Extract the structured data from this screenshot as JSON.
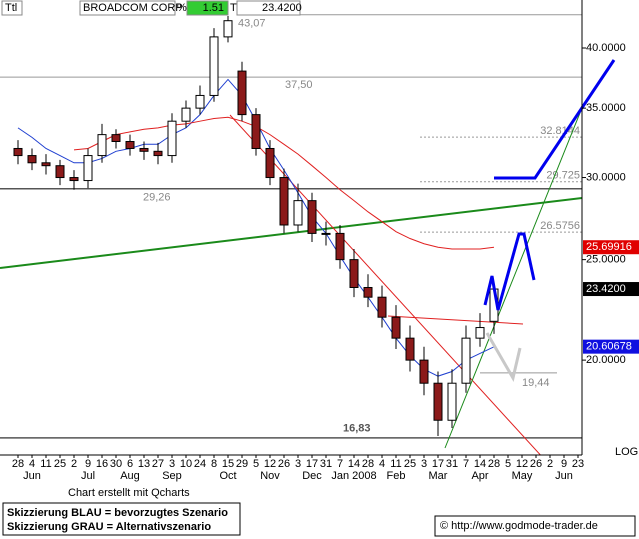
{
  "chart_data": {
    "type": "candlestick",
    "header": {
      "symbol_box": "Ttl",
      "name": "BROADCOM CORP",
      "pct_sign": "%",
      "change": "1.51",
      "mode": "T",
      "last": "23.4200"
    },
    "categories": [
      "28",
      "4",
      "11",
      "25",
      "2",
      "9",
      "16",
      "30",
      "6",
      "13",
      "27",
      "3",
      "10",
      "24",
      "8",
      "15",
      "29",
      "5",
      "12",
      "26",
      "3",
      "17",
      "31",
      "7",
      "14",
      "28",
      "4",
      "11",
      "25",
      "3",
      "17",
      "31",
      "7",
      "14",
      "28",
      "5",
      "12",
      "26",
      "2",
      "9",
      "23"
    ],
    "month_labels": [
      null,
      "Jun",
      null,
      null,
      null,
      "Jul",
      null,
      null,
      "Aug",
      null,
      null,
      "Sep",
      null,
      null,
      null,
      "Oct",
      null,
      null,
      "Nov",
      null,
      null,
      "Dec",
      null,
      null,
      "Jan 2008",
      null,
      null,
      "Feb",
      null,
      null,
      "Mar",
      null,
      null,
      "Apr",
      null,
      null,
      "May",
      null,
      null,
      "Jun",
      null
    ],
    "open": [
      32,
      31.5,
      31,
      30.8,
      30,
      29.8,
      31.5,
      33,
      32.5,
      32,
      31.8,
      31.5,
      34,
      35,
      36,
      41,
      38,
      34.5,
      32,
      30,
      27,
      28.5,
      26.5,
      26.5,
      25,
      23.5,
      23,
      22,
      21,
      20,
      19,
      17.5,
      19,
      21,
      21.8,
      null,
      null,
      null,
      null,
      null,
      null
    ],
    "high": [
      32.6,
      32,
      31.6,
      31.2,
      30.5,
      32,
      33.8,
      33.4,
      33,
      32.5,
      32.4,
      34.6,
      35.6,
      36.8,
      41.8,
      43.2,
      38.8,
      35,
      32.6,
      30.6,
      29.6,
      29,
      27.2,
      27,
      25.6,
      24.2,
      23.6,
      22.6,
      21.6,
      20.6,
      19.5,
      19.6,
      21.6,
      22.2,
      23.8,
      null,
      null,
      null,
      null,
      null,
      null
    ],
    "low": [
      30.9,
      30.5,
      30.2,
      29.5,
      29.2,
      29.3,
      31,
      32,
      31.5,
      31.2,
      30.9,
      31,
      33.5,
      34.5,
      35.5,
      40.5,
      34,
      31.5,
      29.5,
      26.5,
      26.6,
      26,
      25.8,
      24.5,
      23,
      22.5,
      21.5,
      20.5,
      19.5,
      18.5,
      16.9,
      17.2,
      18.6,
      20.6,
      21.2,
      null,
      null,
      null,
      null,
      null,
      null
    ],
    "close": [
      31.5,
      31,
      30.8,
      30,
      29.8,
      31.5,
      33,
      32.5,
      32,
      31.8,
      31.5,
      34,
      35,
      36,
      41,
      42.5,
      34.5,
      32,
      30,
      27,
      28.5,
      26.5,
      26.5,
      25,
      23.5,
      23,
      22,
      21,
      20,
      19,
      17.5,
      19,
      21,
      21.5,
      23.42,
      null,
      null,
      null,
      null,
      null,
      null
    ],
    "series": [
      {
        "color": "#1f3fd0",
        "values": [
          33.5,
          32.8,
          32,
          31.5,
          31,
          31,
          31.3,
          31.8,
          32,
          32.3,
          32.3,
          33,
          33.5,
          34.5,
          36,
          37.3,
          36,
          34,
          32,
          30.5,
          29,
          27.5,
          26.5,
          25.2,
          24,
          23,
          22,
          21,
          20.2,
          19.6,
          19.3,
          19.5,
          20,
          20.3,
          20.6,
          null,
          null,
          null,
          null,
          null,
          null
        ]
      },
      {
        "color": "#e02020",
        "values": [
          null,
          null,
          null,
          null,
          31.9,
          32,
          32.5,
          33,
          33.2,
          33.4,
          33.5,
          33.7,
          33.8,
          34,
          34.2,
          34.3,
          34,
          33.6,
          33,
          32.3,
          31.6,
          30.8,
          30,
          29.2,
          28.5,
          27.8,
          27.2,
          26.6,
          26.2,
          25.9,
          25.7,
          25.6,
          25.6,
          25.6,
          25.7,
          null,
          null,
          null,
          null,
          null,
          null
        ]
      }
    ],
    "levels": [
      {
        "value": 43.07,
        "label": "43,07",
        "color": "#999999",
        "style": "solid"
      },
      {
        "value": 37.5,
        "label": "37,50",
        "color": "#999999",
        "style": "solid"
      },
      {
        "value": 32.8144,
        "color": "#999999",
        "style": "dashed"
      },
      {
        "value": 29.725,
        "color": "#999999",
        "style": "dashed"
      },
      {
        "value": 29.26,
        "label": "29,26",
        "color": "#555555",
        "style": "solid"
      },
      {
        "value": 26.5756,
        "color": "#999999",
        "style": "dashed"
      },
      {
        "value": 19.44,
        "label": "19,44",
        "color": "#999999",
        "style": "short"
      },
      {
        "value": 16.83,
        "label": "16,83",
        "color": "#555555",
        "style": "solid"
      }
    ],
    "price_labels": [
      {
        "value": 25.69916,
        "color": "#e00000"
      },
      {
        "value": 20.60678,
        "color": "#1010e0"
      },
      {
        "value": 23.42,
        "label": "23.4200",
        "color": "#000000"
      }
    ],
    "log_scale": true,
    "scale_label": "LOG",
    "ylim": [
      16.2,
      44.5
    ],
    "yticks": [
      {
        "value": 20,
        "label": "20.0000"
      },
      {
        "value": 25,
        "label": "25.0000"
      },
      {
        "value": 30,
        "label": "30.0000"
      },
      {
        "value": 35,
        "label": "35.0000"
      },
      {
        "value": 40,
        "label": "40.0000"
      }
    ],
    "footer": "Chart erstellt mit Qcharts",
    "notes": [
      "Skizzierung BLAU = bevorzugtes Szenario",
      "Skizzierung GRAU = Alternativszenario"
    ],
    "source": "© http://www.godmode-trader.de"
  }
}
